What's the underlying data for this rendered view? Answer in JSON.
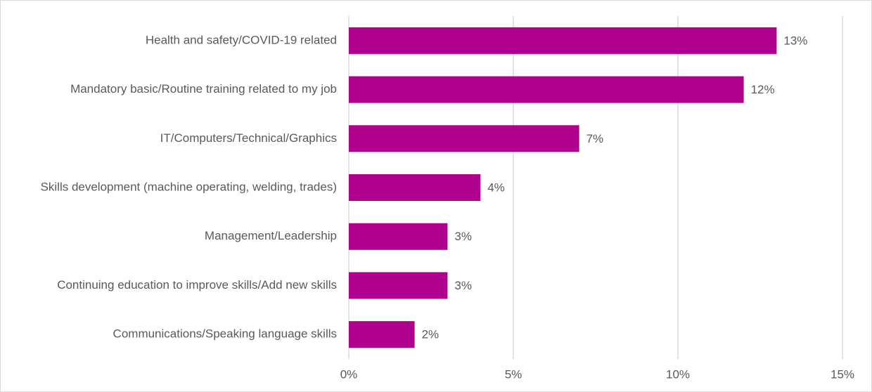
{
  "chart_data": {
    "type": "bar",
    "categories": [
      "Health and safety/COVID-19 related",
      "Mandatory basic/Routine training related to my job",
      "IT/Computers/Technical/Graphics",
      "Skills development (machine operating, welding, trades)",
      "Management/Leadership",
      "Continuing education to improve skills/Add new skills",
      "Communications/Speaking language skills"
    ],
    "values": [
      13,
      12,
      7,
      4,
      3,
      3,
      2
    ],
    "value_labels": [
      "13%",
      "12%",
      "7%",
      "4%",
      "3%",
      "3%",
      "2%"
    ],
    "color": "#b0008e",
    "xlim": [
      0,
      15
    ],
    "xticks": [
      {
        "value": 0,
        "label": "0%"
      },
      {
        "value": 5,
        "label": "5%"
      },
      {
        "value": 10,
        "label": "10%"
      },
      {
        "value": 15,
        "label": "15%"
      }
    ],
    "grid": true
  }
}
